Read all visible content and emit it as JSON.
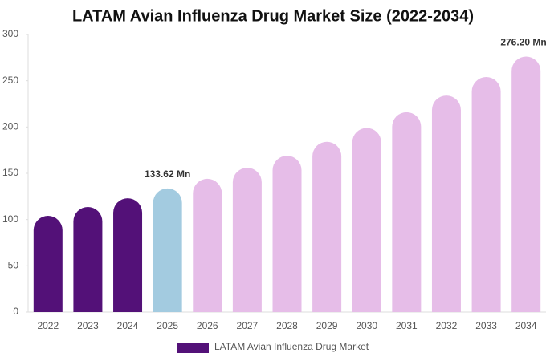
{
  "chart_data": {
    "type": "bar",
    "title": "LATAM Avian Influenza Drug Market Size (2022-2034)",
    "categories": [
      "2022",
      "2023",
      "2024",
      "2025",
      "2026",
      "2027",
      "2028",
      "2029",
      "2030",
      "2031",
      "2032",
      "2033",
      "2034"
    ],
    "series": [
      {
        "name": "LATAM Avian Influenza Drug Market",
        "color": "#531178",
        "values": [
          104,
          113.6,
          123,
          133.62,
          144,
          156,
          169,
          184,
          199,
          216,
          234,
          254,
          276.2
        ],
        "value_labels": [
          null,
          null,
          null,
          "133.62 Mn",
          null,
          null,
          null,
          null,
          null,
          null,
          null,
          null,
          "276.20 Mn"
        ],
        "colors": [
          "#531178",
          "#531178",
          "#531178",
          "#a3cbe0",
          "#e6bde8",
          "#e6bde8",
          "#e6bde8",
          "#e6bde8",
          "#e6bde8",
          "#e6bde8",
          "#e6bde8",
          "#e6bde8",
          "#e6bde8"
        ]
      }
    ],
    "ylim": [
      0,
      300
    ],
    "yticks": [
      0,
      50,
      100,
      150,
      200,
      250,
      300
    ],
    "grid": false
  }
}
